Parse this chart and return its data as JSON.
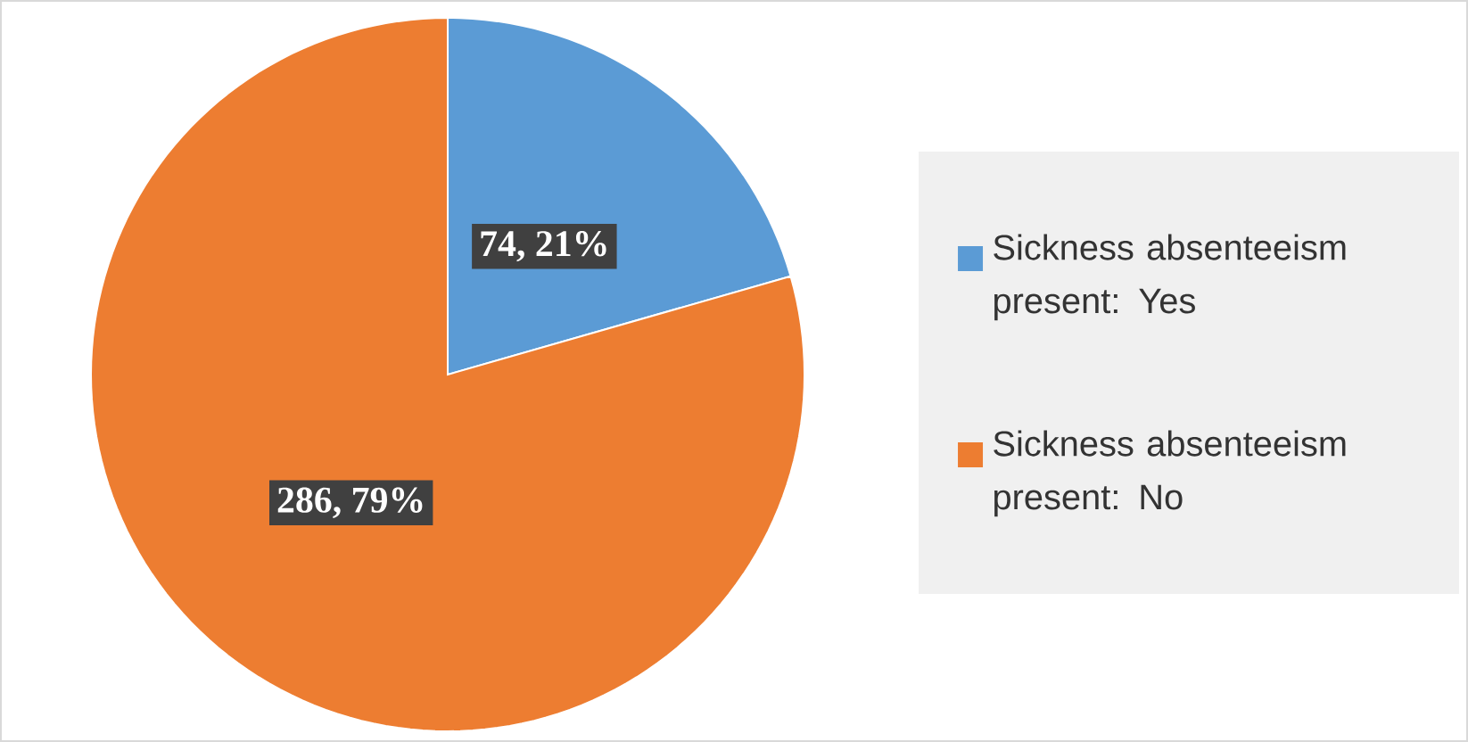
{
  "chart_data": {
    "type": "pie",
    "categories": [
      "Sickness absenteeism present: Yes",
      "Sickness absenteeism present: No"
    ],
    "values": [
      74,
      286
    ],
    "colors": [
      "#5b9bd5",
      "#ed7d31"
    ],
    "value_labels": [
      "74, 21%",
      "286, 79%"
    ],
    "legend": "right"
  }
}
